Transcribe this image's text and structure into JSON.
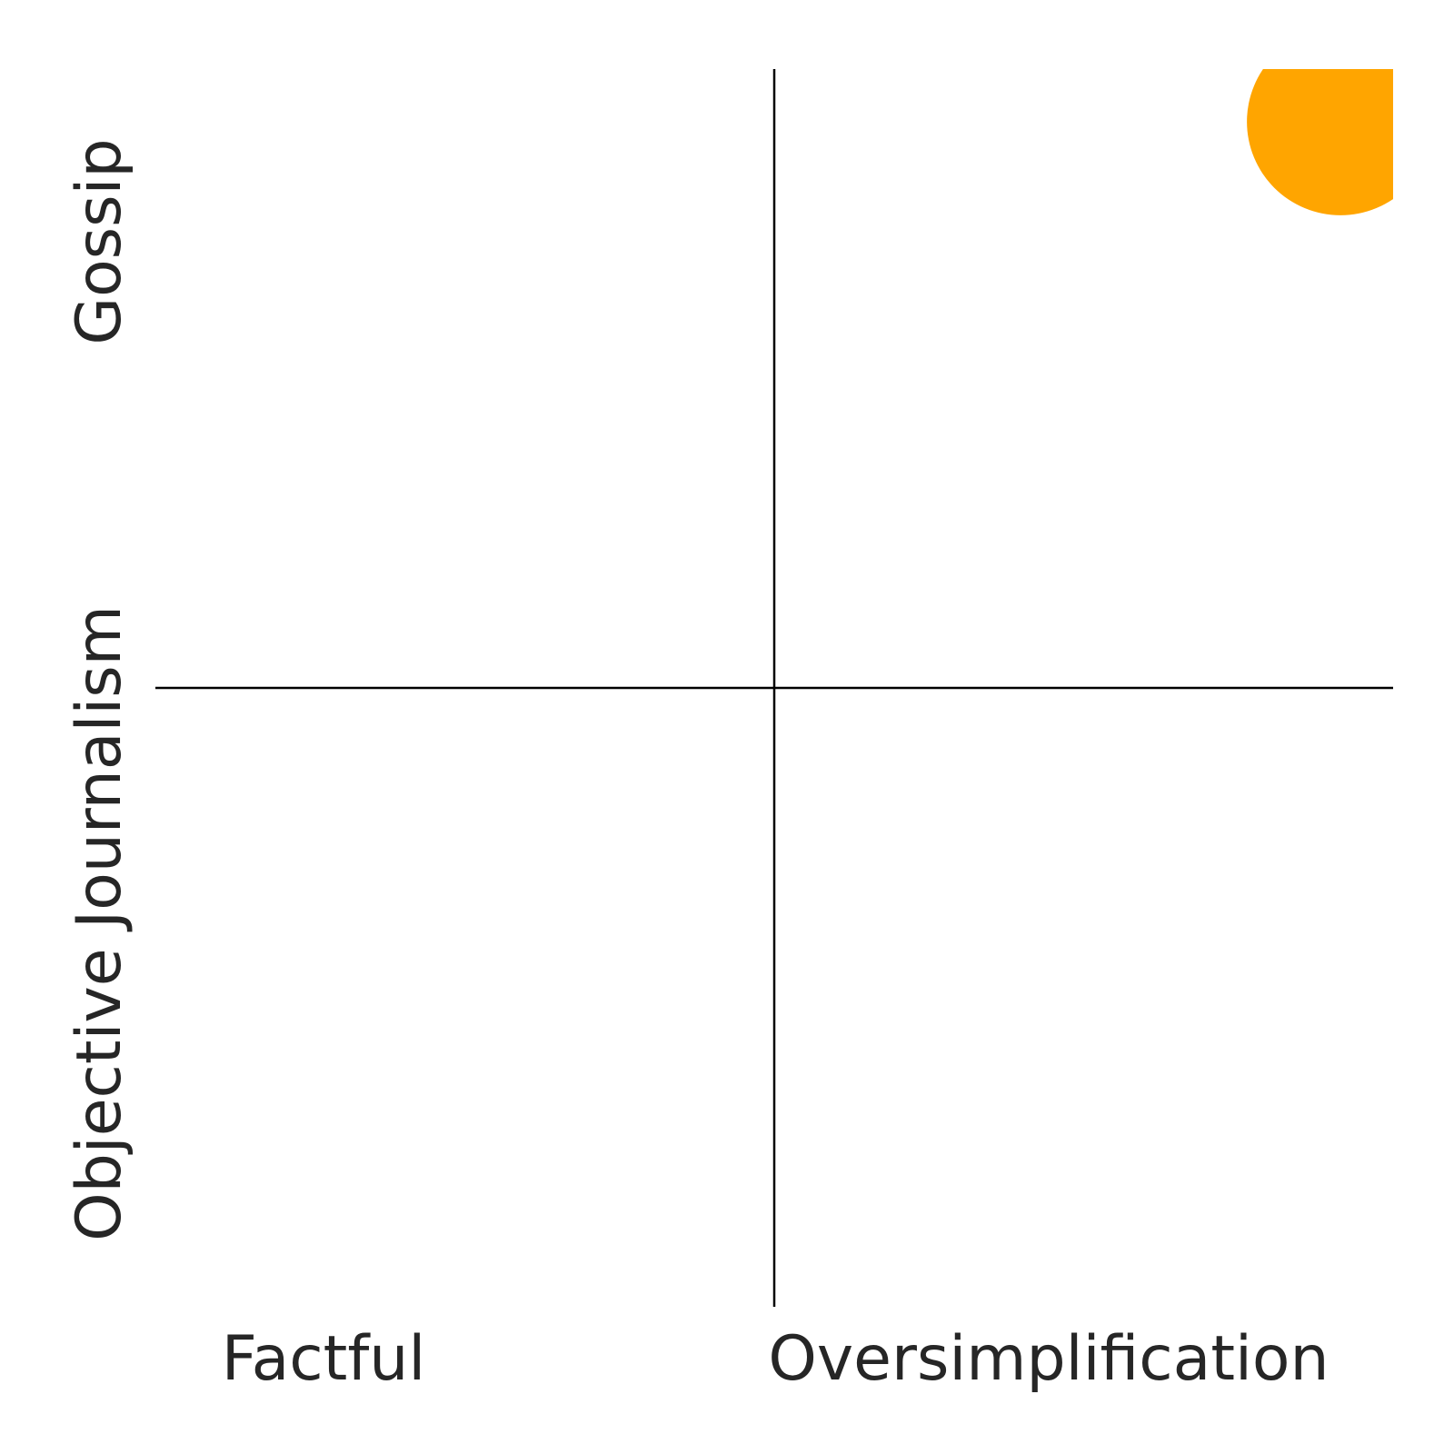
{
  "chart_data": {
    "type": "scatter",
    "title": "",
    "x_axis": {
      "low_label": "Factful",
      "high_label": "Oversimplification",
      "range": [
        -1,
        1
      ]
    },
    "y_axis": {
      "low_label": "Objective Journalism",
      "high_label": "Gossip",
      "range": [
        -1,
        1
      ]
    },
    "quadrant_dividers": {
      "x": 0,
      "y": 0
    },
    "grid": false,
    "legend": "none",
    "points": [
      {
        "x": 0.915,
        "y": 0.915,
        "color": "#ffa500"
      }
    ]
  }
}
